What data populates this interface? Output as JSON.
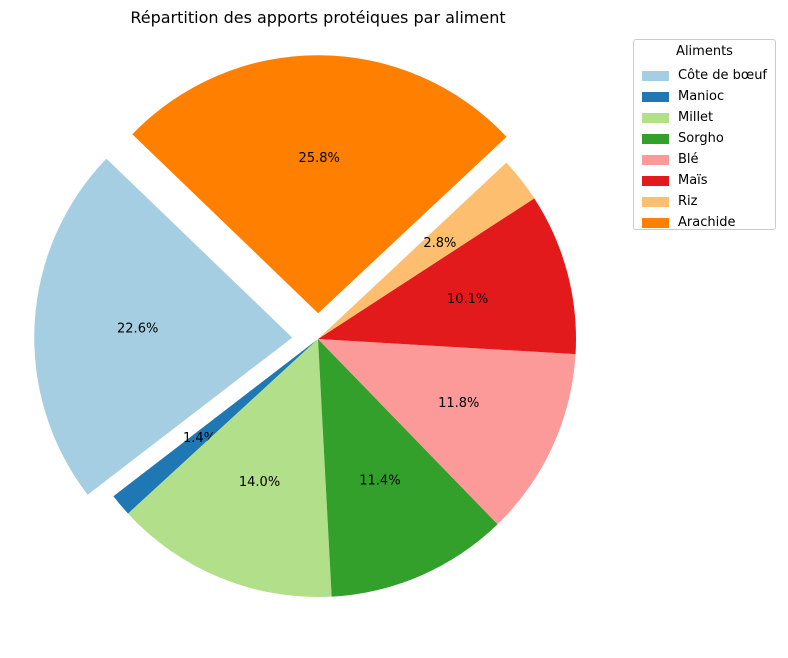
{
  "chart_data": {
    "type": "pie",
    "title": "Répartition des apports protéiques par aliment",
    "legend_title": "Aliments",
    "legend_position": "top-right",
    "categories": [
      "Côte de bœuf",
      "Manioc",
      "Millet",
      "Sorgho",
      "Blé",
      "Maïs",
      "Riz",
      "Arachide"
    ],
    "values": [
      22.6,
      1.4,
      14.0,
      11.4,
      11.8,
      10.1,
      2.8,
      25.8
    ],
    "labels": [
      "22.6%",
      "1.4%",
      "14.0%",
      "11.4%",
      "11.8%",
      "10.1%",
      "2.8%",
      "25.8%"
    ],
    "colors": [
      "#a6cee3",
      "#1f78b4",
      "#b2df8a",
      "#33a02c",
      "#fb9a99",
      "#e31a1c",
      "#fdbf6f",
      "#ff7f00"
    ],
    "exploded": [
      "Côte de bœuf",
      "Arachide"
    ],
    "start_angle": 136.1,
    "direction": "counterclockwise"
  }
}
